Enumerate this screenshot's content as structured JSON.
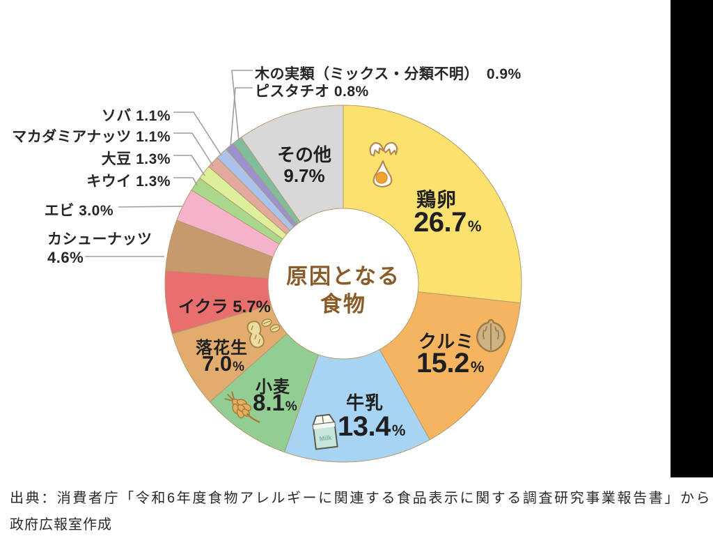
{
  "chart_data": {
    "type": "pie",
    "title": "原因となる食物",
    "center_label": {
      "line1": "原因となる",
      "line2": "食物"
    },
    "unit": "%",
    "start_angle_deg": -90,
    "direction": "clockwise",
    "legend_position": "labels-on-slices-and-callouts",
    "segments": [
      {
        "label": "鶏卵",
        "value": 26.7,
        "color": "#FBE26E",
        "icon": "cracked-egg-icon"
      },
      {
        "label": "クルミ",
        "value": 15.2,
        "color": "#F5B560",
        "icon": "walnut-icon"
      },
      {
        "label": "牛乳",
        "value": 13.4,
        "color": "#A6D4F2",
        "icon": "milk-carton-icon"
      },
      {
        "label": "小麦",
        "value": 8.1,
        "color": "#92CD94",
        "icon": "wheat-icon"
      },
      {
        "label": "落花生",
        "value": 7.0,
        "color": "#E2AC6F",
        "icon": "peanut-icon"
      },
      {
        "label": "イクラ",
        "value": 5.7,
        "color": "#E96F6F"
      },
      {
        "label": "カシューナッツ",
        "value": 4.6,
        "color": "#C69A6D"
      },
      {
        "label": "エビ",
        "value": 3.0,
        "color": "#F5B3CB"
      },
      {
        "label": "キウイ",
        "value": 1.3,
        "color": "#A9D88C"
      },
      {
        "label": "大豆",
        "value": 1.3,
        "color": "#DEEF9B"
      },
      {
        "label": "マカダミアナッツ",
        "value": 1.1,
        "color": "#E3A99F"
      },
      {
        "label": "ソバ",
        "value": 1.1,
        "color": "#ABC3EA"
      },
      {
        "label": "ピスタチオ",
        "value": 0.8,
        "color": "#9B90D0"
      },
      {
        "label": "木の実類（ミックス・分類不明）",
        "value": 0.9,
        "color": "#7FBD9C"
      },
      {
        "label": "その他",
        "value": 9.7,
        "color": "#D8D8D8"
      }
    ]
  },
  "in_slice_labels": {
    "keiran": {
      "name": "鶏卵",
      "num": "26.7",
      "unit": "%"
    },
    "kurumi": {
      "name": "クルミ",
      "num": "15.2",
      "unit": "%"
    },
    "gyunyu": {
      "name": "牛乳",
      "num": "13.4",
      "unit": "%"
    },
    "komugi": {
      "name": "小麦",
      "num": "8.1",
      "unit": "%"
    },
    "rakkasei": {
      "name": "落花生",
      "num": "7.0",
      "unit": "%"
    },
    "ikura": {
      "text": "イクラ 5.7%"
    },
    "sonota": {
      "line1": "その他",
      "line2": "9.7%"
    }
  },
  "callouts": {
    "kinomi": "木の実類（ミックス・分類不明）　0.9%",
    "pistachio": "ピスタチオ 0.8%",
    "soba": "ソバ 1.1%",
    "macadamia": "マカダミアナッツ 1.1%",
    "daizu": "大豆 1.3%",
    "kiwi": "キウイ 1.3%",
    "ebi": "エビ 3.0%",
    "cashew_line1": "カシューナッツ",
    "cashew_line2": "4.6%"
  },
  "milk_icon_text": "Milk",
  "source": {
    "line1": "出典：消費者庁「令和6年度食物アレルギーに関連する食品表示に関する調査研究事業報告書」から",
    "line2": "政府広報室作成"
  }
}
